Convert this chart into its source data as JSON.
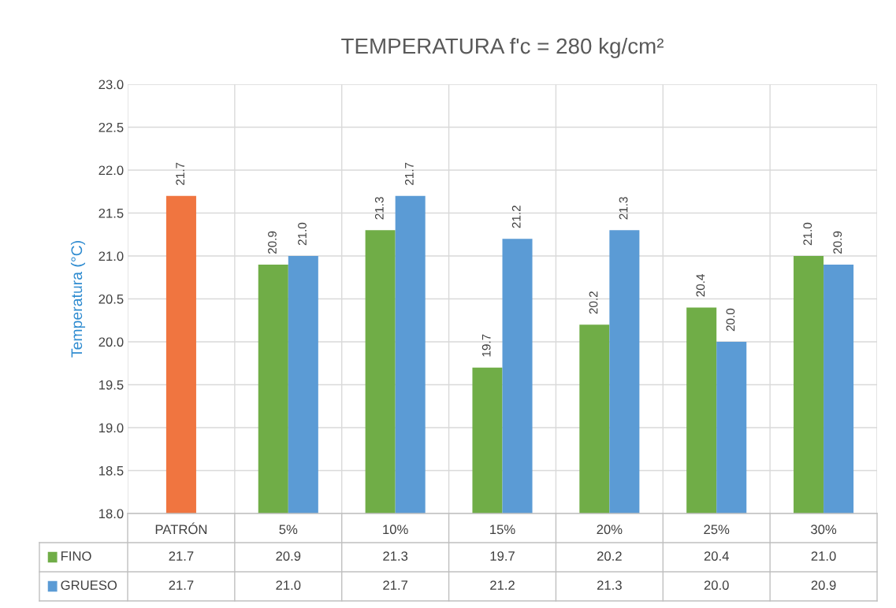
{
  "chart_data": {
    "type": "bar",
    "title": "TEMPERATURA f'c = 280 kg/cm²",
    "ylabel": "Temperatura (°C)",
    "categories": [
      "PATRÓN",
      "5%",
      "10%",
      "15%",
      "20%",
      "25%",
      "30%"
    ],
    "series": [
      {
        "name": "FINO",
        "color": "#70ad47",
        "colors": [
          "#f07540",
          "#70ad47",
          "#70ad47",
          "#70ad47",
          "#70ad47",
          "#70ad47",
          "#70ad47"
        ],
        "values": [
          21.7,
          20.9,
          21.3,
          19.7,
          20.2,
          20.4,
          21.0
        ],
        "value_labels": [
          "21.7",
          "20.9",
          "21.3",
          "19.7",
          "20.2",
          "20.4",
          "21.0"
        ]
      },
      {
        "name": "GRUESO",
        "color": "#5b9bd5",
        "values": [
          null,
          21.0,
          21.7,
          21.2,
          21.3,
          20.0,
          20.9
        ],
        "value_labels": [
          "21.7",
          "21.0",
          "21.7",
          "21.2",
          "21.3",
          "20.0",
          "20.9"
        ]
      }
    ],
    "ylim": [
      18.0,
      23.0
    ],
    "yticks": [
      {
        "value": 18,
        "label": "18.0"
      },
      {
        "value": 18.5,
        "label": "18.5"
      },
      {
        "value": 19,
        "label": "19.0"
      },
      {
        "value": 19.5,
        "label": "19.5"
      },
      {
        "value": 20,
        "label": "20.0"
      },
      {
        "value": 20.5,
        "label": "20.5"
      },
      {
        "value": 21,
        "label": "21.0"
      },
      {
        "value": 21.5,
        "label": "21.5"
      },
      {
        "value": 22,
        "label": "22.0"
      },
      {
        "value": 22.5,
        "label": "22.5"
      },
      {
        "value": 23,
        "label": "23.0"
      }
    ],
    "grid": true,
    "legend": "bottom",
    "data_labels": true
  }
}
